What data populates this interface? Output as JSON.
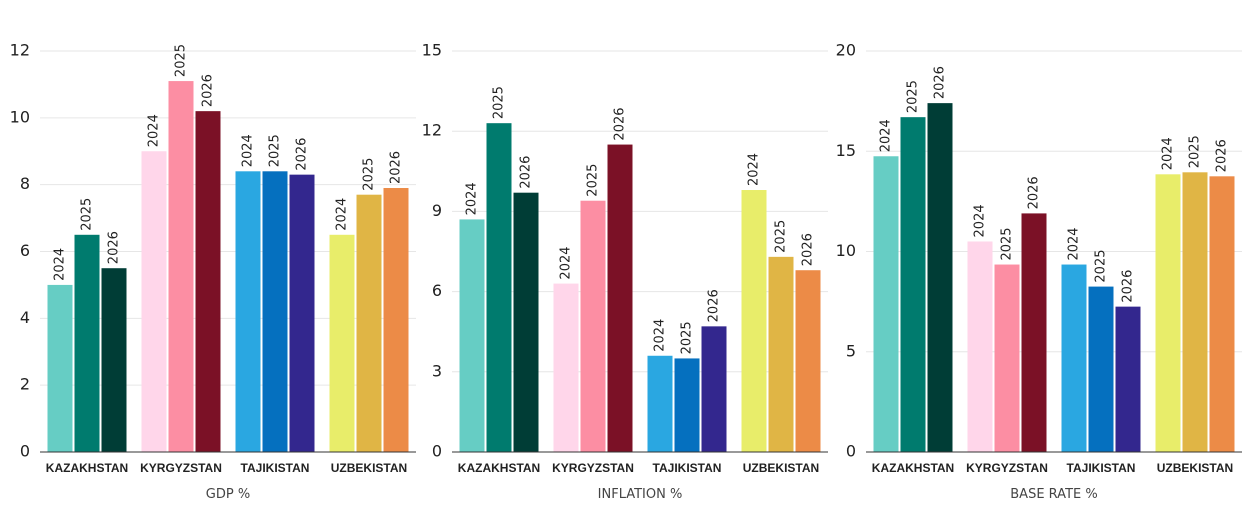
{
  "chart_data": [
    {
      "type": "bar",
      "x_label": "GDP %",
      "categories": [
        "KAZAKHSTAN",
        "KYRGYZSTAN",
        "TAJIKISTAN",
        "UZBEKISTAN"
      ],
      "series": [
        {
          "name": "2024",
          "color": [
            "#66cdc4",
            "#ffd6ea",
            "#2aa7e1",
            "#e8ed6a"
          ],
          "values": [
            5.0,
            9.0,
            8.4,
            6.5
          ]
        },
        {
          "name": "2025",
          "color": [
            "#007b6e",
            "#fc8ea3",
            "#0570bf",
            "#e0b545"
          ],
          "values": [
            6.5,
            11.1,
            8.4,
            7.7
          ]
        },
        {
          "name": "2026",
          "color": [
            "#003d36",
            "#7b1126",
            "#33278e",
            "#ec8b47"
          ],
          "values": [
            5.5,
            10.2,
            8.3,
            7.9
          ]
        }
      ],
      "ylim": [
        0,
        12
      ],
      "yticks": [
        0,
        2,
        4,
        6,
        8,
        10,
        12
      ],
      "grid": true
    },
    {
      "type": "bar",
      "x_label": "INFLATION %",
      "categories": [
        "KAZAKHSTAN",
        "KYRGYZSTAN",
        "TAJIKISTAN",
        "UZBEKISTAN"
      ],
      "series": [
        {
          "name": "2024",
          "color": [
            "#66cdc4",
            "#ffd6ea",
            "#2aa7e1",
            "#e8ed6a"
          ],
          "values": [
            8.7,
            6.3,
            3.6,
            9.8
          ]
        },
        {
          "name": "2025",
          "color": [
            "#007b6e",
            "#fc8ea3",
            "#0570bf",
            "#e0b545"
          ],
          "values": [
            12.3,
            9.4,
            3.5,
            7.3
          ]
        },
        {
          "name": "2026",
          "color": [
            "#003d36",
            "#7b1126",
            "#33278e",
            "#ec8b47"
          ],
          "values": [
            9.7,
            11.5,
            4.7,
            6.8
          ]
        }
      ],
      "ylim": [
        0,
        15
      ],
      "yticks": [
        0,
        3,
        6,
        9,
        12,
        15
      ],
      "grid": true
    },
    {
      "type": "bar",
      "x_label": "BASE RATE %",
      "categories": [
        "KAZAKHSTAN",
        "KYRGYZSTAN",
        "TAJIKISTAN",
        "UZBEKISTAN"
      ],
      "series": [
        {
          "name": "2024",
          "color": [
            "#66cdc4",
            "#ffd6ea",
            "#2aa7e1",
            "#e8ed6a"
          ],
          "values": [
            14.75,
            10.5,
            9.35,
            13.85
          ]
        },
        {
          "name": "2025",
          "color": [
            "#007b6e",
            "#fc8ea3",
            "#0570bf",
            "#e0b545"
          ],
          "values": [
            16.7,
            9.35,
            8.25,
            13.95
          ]
        },
        {
          "name": "2026",
          "color": [
            "#003d36",
            "#7b1126",
            "#33278e",
            "#ec8b47"
          ],
          "values": [
            17.4,
            11.9,
            7.25,
            13.75
          ]
        }
      ],
      "ylim": [
        0,
        20
      ],
      "yticks": [
        0,
        5,
        10,
        15,
        20
      ],
      "grid": true
    }
  ]
}
